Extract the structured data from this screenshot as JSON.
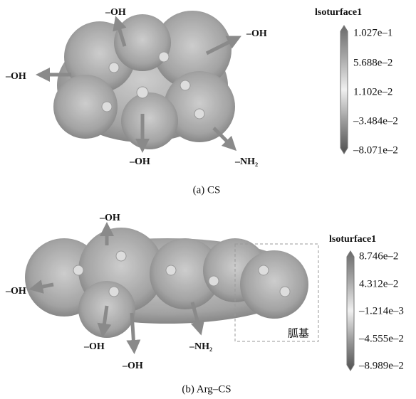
{
  "panels": [
    {
      "caption": "(a) CS",
      "labels": [
        "–OH",
        "–OH",
        "–OH",
        "–OH",
        "–NH₂"
      ],
      "colorbar": {
        "title": "lsoturface1",
        "ticks": [
          "1.027e–1",
          "5.688e–2",
          "1.102e–2",
          "–3.484e–2",
          "–8.071e–2"
        ]
      }
    },
    {
      "caption": "(b) Arg–CS",
      "labels": [
        "–OH",
        "–OH",
        "–OH",
        "–OH",
        "–NH₂"
      ],
      "box_label": "胍基",
      "colorbar": {
        "title": "lsoturface1",
        "ticks": [
          "8.746e–2",
          "4.312e–2",
          "–1.214e–3",
          "–4.555e–2",
          "–8.989e–2"
        ]
      }
    }
  ]
}
